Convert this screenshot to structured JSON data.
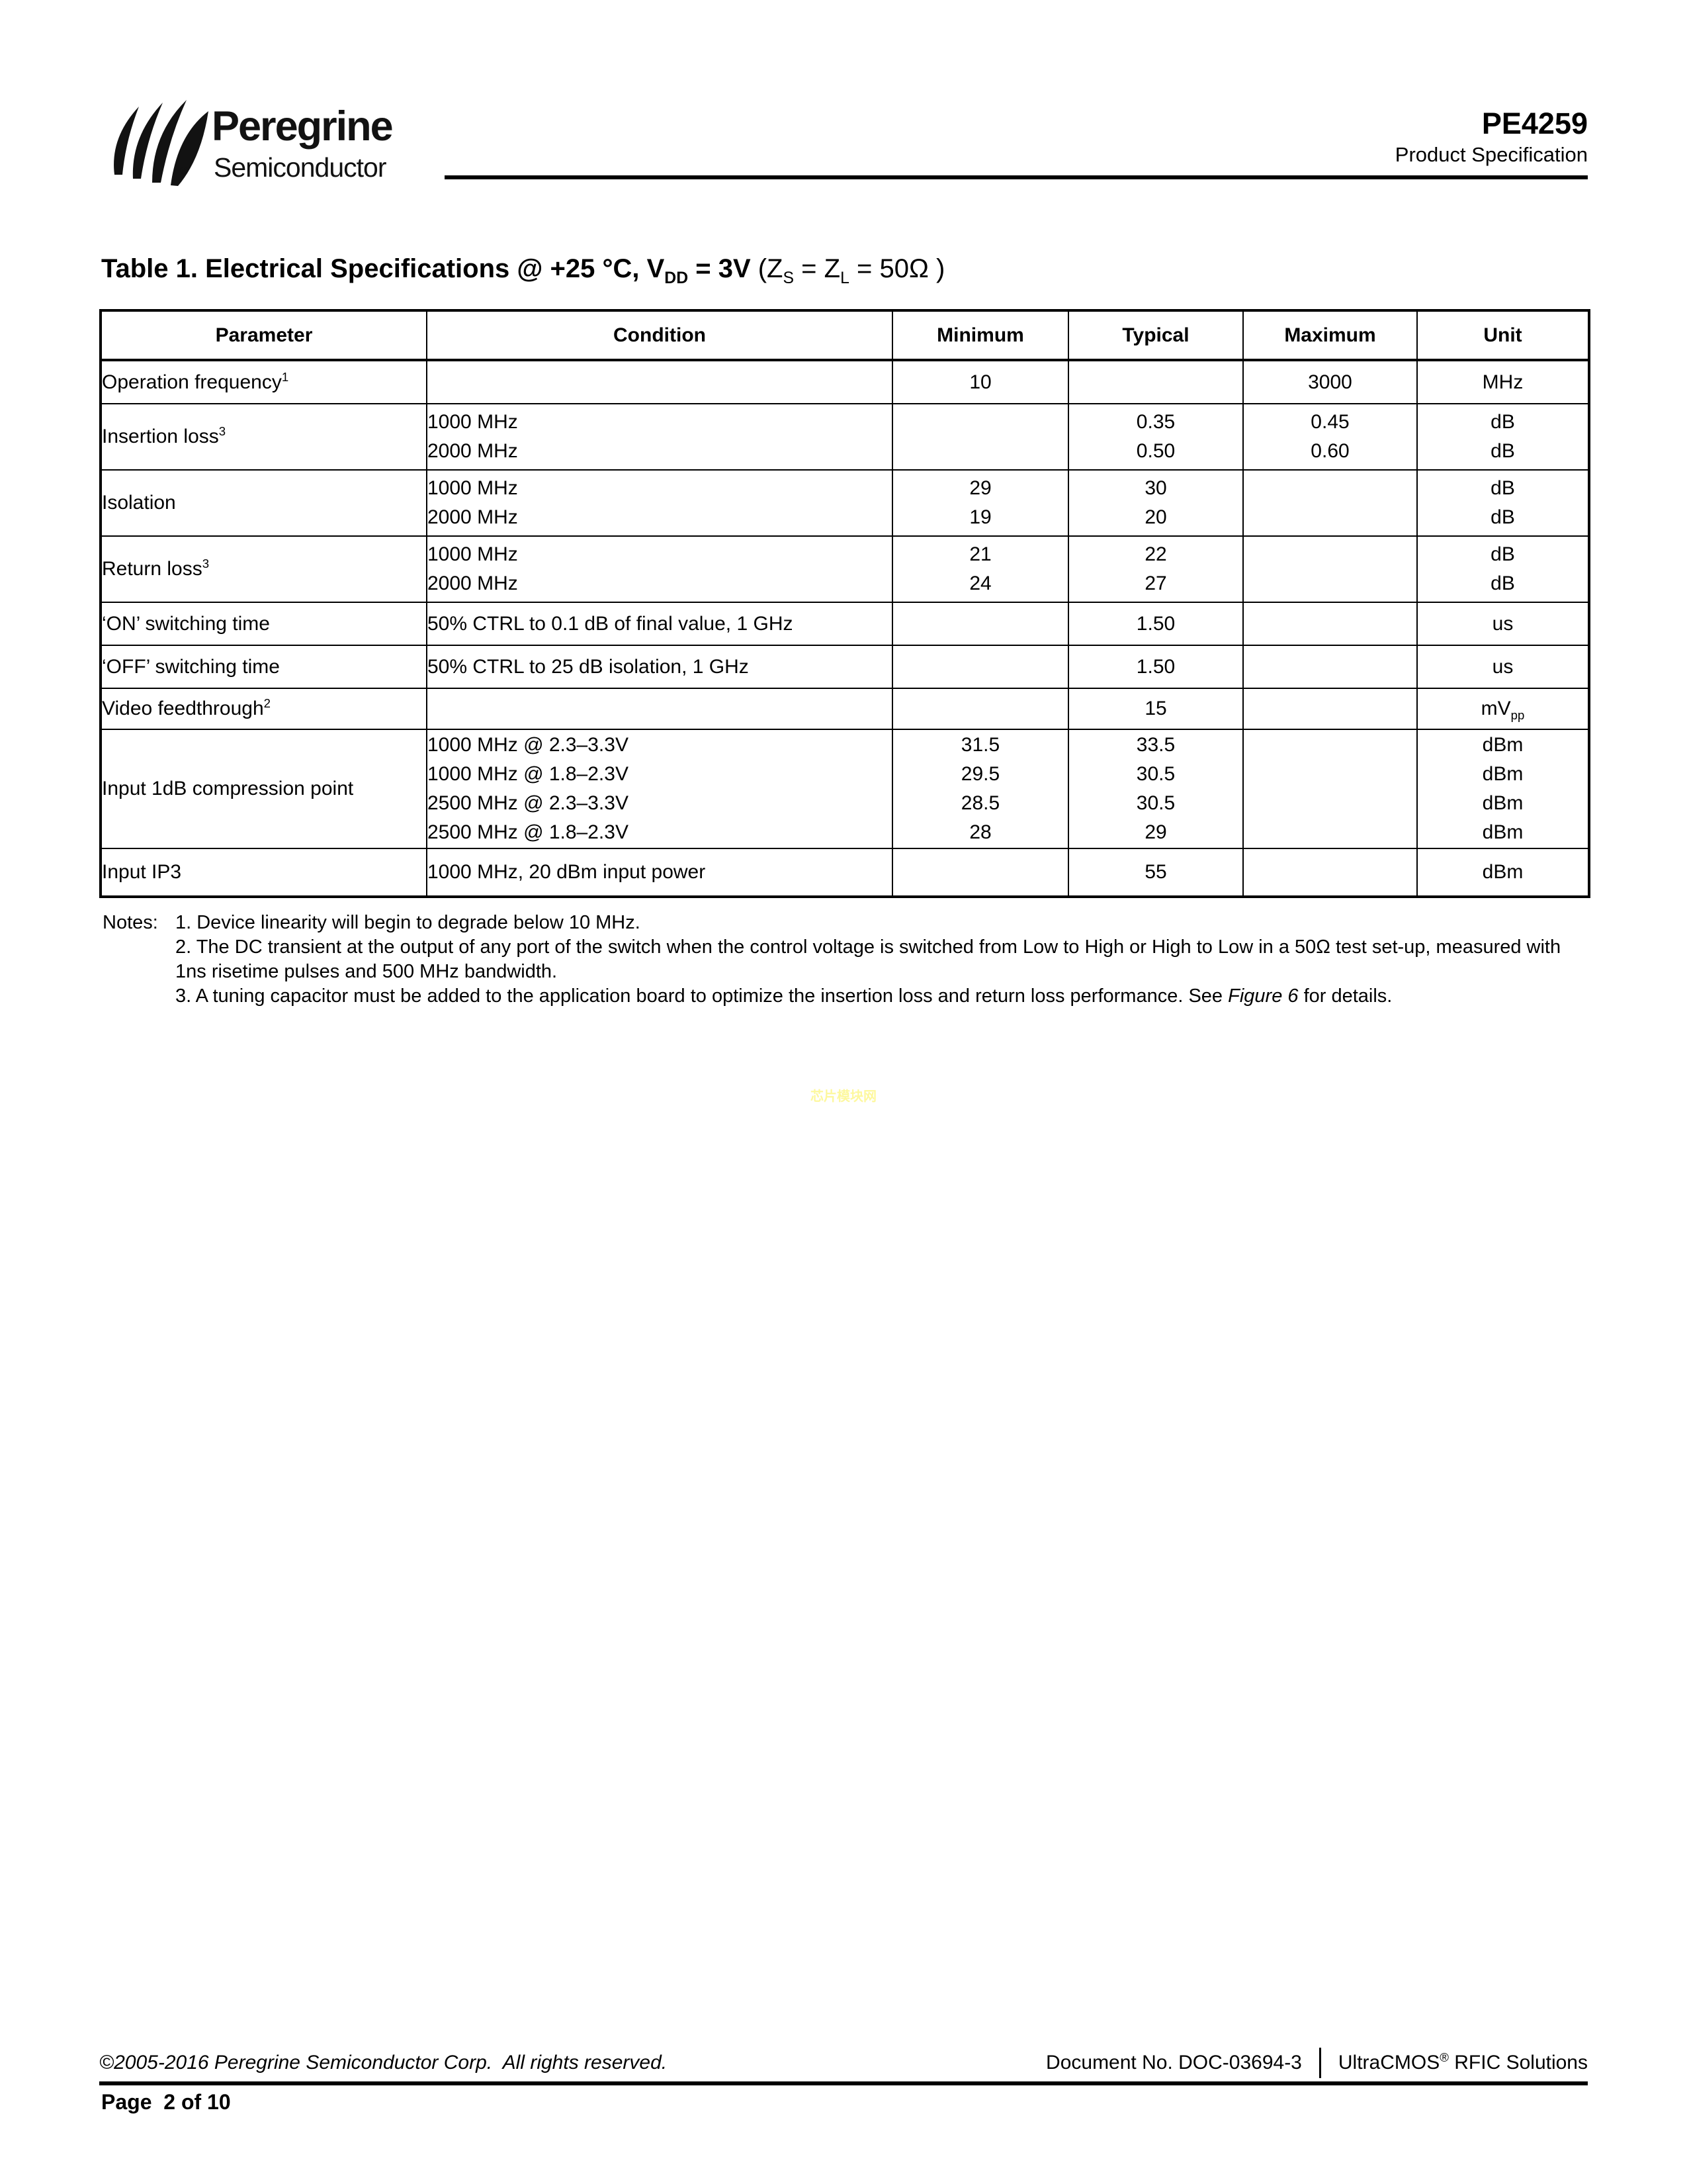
{
  "header": {
    "brand_name": "Peregrine",
    "brand_sub": "Semiconductor",
    "registered_mark": "®",
    "product_id": "PE4259",
    "doc_type": "Product Specification"
  },
  "table": {
    "title_bold": "Table 1. Electrical Specifications @ +25 °C, V~{DD} = 3V ",
    "title_regular": "(Z~{S} = Z~{L} = 50Ω )",
    "columns": [
      "Parameter",
      "Condition",
      "Minimum",
      "Typical",
      "Maximum",
      "Unit"
    ],
    "rows": [
      {
        "parameter": "Operation frequency^{1}",
        "condition": [
          ""
        ],
        "minimum": [
          "10"
        ],
        "typical": [
          ""
        ],
        "maximum": [
          "3000"
        ],
        "unit": [
          "MHz"
        ]
      },
      {
        "parameter": "Insertion loss^{3}",
        "condition": [
          "1000 MHz",
          "2000 MHz"
        ],
        "minimum": [
          "",
          ""
        ],
        "typical": [
          "0.35",
          "0.50"
        ],
        "maximum": [
          "0.45",
          "0.60"
        ],
        "unit": [
          "dB",
          "dB"
        ]
      },
      {
        "parameter": "Isolation",
        "condition": [
          "1000 MHz",
          "2000 MHz"
        ],
        "minimum": [
          "29",
          "19"
        ],
        "typical": [
          "30",
          "20"
        ],
        "maximum": [
          "",
          ""
        ],
        "unit": [
          "dB",
          "dB"
        ]
      },
      {
        "parameter": "Return loss^{3}",
        "condition": [
          "1000 MHz",
          "2000 MHz"
        ],
        "minimum": [
          "21",
          "24"
        ],
        "typical": [
          "22",
          "27"
        ],
        "maximum": [
          "",
          ""
        ],
        "unit": [
          "dB",
          "dB"
        ]
      },
      {
        "parameter": "‘ON’ switching time",
        "condition": [
          "50% CTRL to 0.1 dB of final value, 1 GHz"
        ],
        "minimum": [
          ""
        ],
        "typical": [
          "1.50"
        ],
        "maximum": [
          ""
        ],
        "unit": [
          "us"
        ]
      },
      {
        "parameter": "‘OFF’ switching time",
        "condition": [
          "50% CTRL to 25 dB isolation, 1 GHz"
        ],
        "minimum": [
          ""
        ],
        "typical": [
          "1.50"
        ],
        "maximum": [
          ""
        ],
        "unit": [
          "us"
        ]
      },
      {
        "parameter": "Video feedthrough^{2}",
        "condition": [
          ""
        ],
        "minimum": [
          ""
        ],
        "typical": [
          "15"
        ],
        "maximum": [
          ""
        ],
        "unit": [
          "mV~{pp}"
        ]
      },
      {
        "parameter": "Input 1dB compression point",
        "condition": [
          "1000 MHz @ 2.3–3.3V",
          "1000 MHz @ 1.8–2.3V",
          "2500 MHz @ 2.3–3.3V",
          "2500 MHz @ 1.8–2.3V"
        ],
        "minimum": [
          "31.5",
          "29.5",
          "28.5",
          "28"
        ],
        "typical": [
          "33.5",
          "30.5",
          "30.5",
          "29"
        ],
        "maximum": [
          "",
          "",
          "",
          ""
        ],
        "unit": [
          "dBm",
          "dBm",
          "dBm",
          "dBm"
        ]
      },
      {
        "parameter": "Input IP3",
        "condition": [
          "1000 MHz, 20 dBm input power"
        ],
        "minimum": [
          ""
        ],
        "typical": [
          "55"
        ],
        "maximum": [
          ""
        ],
        "unit": [
          "dBm"
        ]
      }
    ]
  },
  "notes": {
    "label": "Notes:",
    "items": [
      "1. Device linearity will begin to degrade below 10 MHz.",
      "2. The DC transient at the output of any port of the switch when the control voltage is switched from Low to High or High to Low in a 50Ω test set-up, measured with 1ns risetime pulses and 500 MHz bandwidth.",
      "3. A tuning capacitor must be added to the application board to optimize the insertion loss and return loss performance. See *{Figure 6} for details."
    ]
  },
  "watermark": {
    "text": "芯片模块网",
    "color": "#FDF89E"
  },
  "footer": {
    "copyright": "©2005-2016 Peregrine Semiconductor Corp.  All rights reserved.",
    "document_no": "Document No. DOC-03694-3",
    "brand_line": "UltraCMOS^{®} RFIC Solutions",
    "page_label": "Page  2 of 10"
  }
}
